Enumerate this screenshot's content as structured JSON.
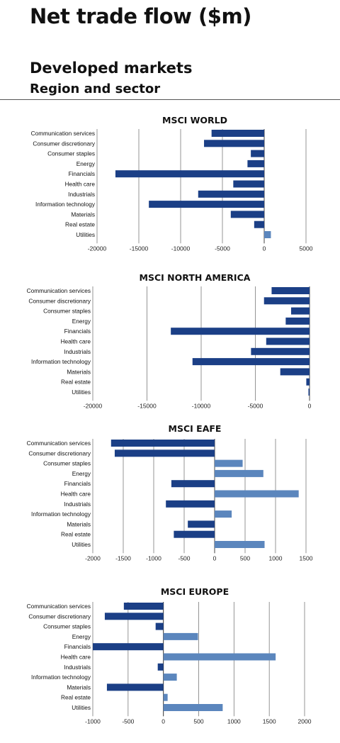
{
  "page": {
    "title": "Net trade flow ($m)",
    "section_title": "Developed markets",
    "section_subtitle": "Region and sector"
  },
  "colors": {
    "negative": "#1b3f86",
    "positive": "#5b86bd",
    "grid": "#7a7a7a"
  },
  "chart_data": [
    {
      "type": "bar",
      "orientation": "horizontal",
      "title": "MSCI WORLD",
      "categories": [
        "Communication services",
        "Consumer discretionary",
        "Consumer staples",
        "Energy",
        "Financials",
        "Health care",
        "Industrials",
        "Information technology",
        "Materials",
        "Real estate",
        "Utilities"
      ],
      "values": [
        -6300,
        -7200,
        -1600,
        -2000,
        -17800,
        -3700,
        -7900,
        -13800,
        -4000,
        -1200,
        800
      ],
      "xlim": [
        -20000,
        5000
      ],
      "ticks": [
        -20000,
        -15000,
        -10000,
        -5000,
        0,
        5000
      ],
      "grid": true
    },
    {
      "type": "bar",
      "orientation": "horizontal",
      "title": "MSCI NORTH AMERICA",
      "categories": [
        "Communication services",
        "Consumer discretionary",
        "Consumer staples",
        "Energy",
        "Financials",
        "Health care",
        "Industrials",
        "Information technology",
        "Materials",
        "Real estate",
        "Utilities"
      ],
      "values": [
        -3500,
        -4200,
        -1700,
        -2200,
        -12800,
        -4000,
        -5400,
        -10800,
        -2700,
        -300,
        -100
      ],
      "xlim": [
        -20000,
        0
      ],
      "ticks": [
        -20000,
        -15000,
        -10000,
        -5000,
        0
      ],
      "grid": true
    },
    {
      "type": "bar",
      "orientation": "horizontal",
      "title": "MSCI EAFE",
      "categories": [
        "Communication services",
        "Consumer discretionary",
        "Consumer staples",
        "Energy",
        "Financials",
        "Health care",
        "Industrials",
        "Information technology",
        "Materials",
        "Real estate",
        "Utilities"
      ],
      "values": [
        -1700,
        -1640,
        460,
        800,
        -710,
        1380,
        -800,
        280,
        -440,
        -670,
        820
      ],
      "xlim": [
        -2000,
        1500
      ],
      "ticks": [
        -2000,
        -1500,
        -1000,
        -500,
        0,
        500,
        1000,
        1500
      ],
      "grid": true
    },
    {
      "type": "bar",
      "orientation": "horizontal",
      "title": "MSCI EUROPE",
      "categories": [
        "Communication services",
        "Consumer discretionary",
        "Consumer staples",
        "Energy",
        "Financials",
        "Health care",
        "Industrials",
        "Information technology",
        "Materials",
        "Real estate",
        "Utilities"
      ],
      "values": [
        -560,
        -830,
        -110,
        490,
        -1000,
        1590,
        -80,
        190,
        -800,
        60,
        840
      ],
      "xlim": [
        -1000,
        2000
      ],
      "ticks": [
        -1000,
        -500,
        0,
        500,
        1000,
        1500,
        2000
      ],
      "grid": true
    }
  ]
}
